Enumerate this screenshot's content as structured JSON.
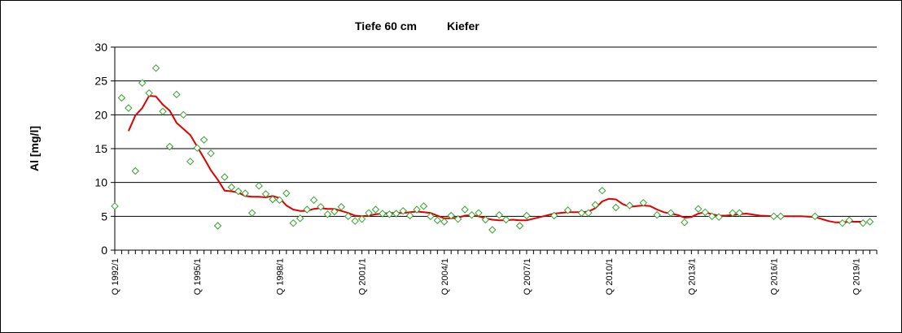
{
  "chart_data": {
    "type": "scatter",
    "title_left": "Tiefe  60 cm",
    "title_right": "Kiefer",
    "ylabel": "Al [mg/l]",
    "xlabel": "",
    "ylim": [
      0,
      30
    ],
    "yticks": [
      0,
      5,
      10,
      15,
      20,
      25,
      30
    ],
    "xlim": [
      1992.0,
      2019.75
    ],
    "xtick_labels": [
      {
        "x": 1992.0,
        "label": "Q 1992/1"
      },
      {
        "x": 1995.0,
        "label": "Q 1995/1"
      },
      {
        "x": 1998.0,
        "label": "Q 1998/1"
      },
      {
        "x": 2001.0,
        "label": "Q 2001/1"
      },
      {
        "x": 2004.0,
        "label": "Q 2004/1"
      },
      {
        "x": 2007.0,
        "label": "Q 2007/1"
      },
      {
        "x": 2010.0,
        "label": "Q 2010/1"
      },
      {
        "x": 2013.0,
        "label": "Q 2013/1"
      },
      {
        "x": 2016.0,
        "label": "Q 2016/1"
      },
      {
        "x": 2019.0,
        "label": "Q 2019/1"
      }
    ],
    "grid": "horizontal",
    "legend": "none",
    "series": [
      {
        "kind": "points",
        "marker": "diamond",
        "color": "#33a02c",
        "points": [
          [
            1992.0,
            6.5
          ],
          [
            1992.25,
            22.5
          ],
          [
            1992.5,
            21.0
          ],
          [
            1992.75,
            11.7
          ],
          [
            1993.0,
            24.7
          ],
          [
            1993.25,
            23.2
          ],
          [
            1993.5,
            26.9
          ],
          [
            1993.75,
            20.5
          ],
          [
            1994.0,
            15.3
          ],
          [
            1994.25,
            23.0
          ],
          [
            1994.5,
            20.0
          ],
          [
            1994.75,
            13.1
          ],
          [
            1995.0,
            15.1
          ],
          [
            1995.25,
            16.3
          ],
          [
            1995.5,
            14.3
          ],
          [
            1995.75,
            3.6
          ],
          [
            1996.0,
            10.8
          ],
          [
            1996.25,
            9.3
          ],
          [
            1996.5,
            8.7
          ],
          [
            1996.75,
            8.4
          ],
          [
            1997.0,
            5.5
          ],
          [
            1997.25,
            9.5
          ],
          [
            1997.5,
            8.3
          ],
          [
            1997.75,
            7.5
          ],
          [
            1998.0,
            7.4
          ],
          [
            1998.25,
            8.4
          ],
          [
            1998.5,
            4.0
          ],
          [
            1998.75,
            4.7
          ],
          [
            1999.0,
            6.0
          ],
          [
            1999.25,
            7.4
          ],
          [
            1999.5,
            6.4
          ],
          [
            1999.75,
            5.3
          ],
          [
            2000.0,
            5.7
          ],
          [
            2000.25,
            6.4
          ],
          [
            2000.5,
            5.0
          ],
          [
            2000.75,
            4.3
          ],
          [
            2001.0,
            4.6
          ],
          [
            2001.25,
            5.5
          ],
          [
            2001.5,
            6.0
          ],
          [
            2001.75,
            5.4
          ],
          [
            2002.0,
            5.3
          ],
          [
            2002.25,
            5.4
          ],
          [
            2002.5,
            5.8
          ],
          [
            2002.75,
            5.1
          ],
          [
            2003.0,
            6.0
          ],
          [
            2003.25,
            6.5
          ],
          [
            2003.5,
            5.0
          ],
          [
            2003.75,
            4.4
          ],
          [
            2004.0,
            4.2
          ],
          [
            2004.25,
            5.1
          ],
          [
            2004.5,
            4.6
          ],
          [
            2004.75,
            6.0
          ],
          [
            2005.0,
            5.2
          ],
          [
            2005.25,
            5.5
          ],
          [
            2005.5,
            4.5
          ],
          [
            2005.75,
            3.0
          ],
          [
            2006.0,
            5.2
          ],
          [
            2006.25,
            4.5
          ],
          [
            2006.75,
            3.6
          ],
          [
            2007.0,
            5.1
          ],
          [
            2008.0,
            5.1
          ],
          [
            2008.5,
            5.9
          ],
          [
            2009.0,
            5.5
          ],
          [
            2009.25,
            5.5
          ],
          [
            2009.5,
            6.7
          ],
          [
            2009.75,
            8.8
          ],
          [
            2010.25,
            6.3
          ],
          [
            2010.75,
            6.6
          ],
          [
            2011.25,
            7.0
          ],
          [
            2011.75,
            5.2
          ],
          [
            2012.25,
            5.5
          ],
          [
            2012.75,
            4.1
          ],
          [
            2013.25,
            6.1
          ],
          [
            2013.5,
            5.6
          ],
          [
            2013.75,
            5.0
          ],
          [
            2014.0,
            4.9
          ],
          [
            2014.5,
            5.5
          ],
          [
            2014.75,
            5.5
          ],
          [
            2016.0,
            5.0
          ],
          [
            2016.25,
            5.0
          ],
          [
            2017.5,
            5.0
          ],
          [
            2018.5,
            4.0
          ],
          [
            2018.75,
            4.4
          ],
          [
            2019.25,
            4.0
          ],
          [
            2019.5,
            4.2
          ]
        ]
      },
      {
        "kind": "line",
        "color": "#e00000",
        "points": [
          [
            1992.5,
            17.6
          ],
          [
            1992.75,
            19.9
          ],
          [
            1993.0,
            21.0
          ],
          [
            1993.25,
            22.8
          ],
          [
            1993.5,
            22.7
          ],
          [
            1993.75,
            21.5
          ],
          [
            1994.0,
            20.6
          ],
          [
            1994.25,
            18.8
          ],
          [
            1994.5,
            17.9
          ],
          [
            1994.75,
            17.0
          ],
          [
            1995.0,
            15.3
          ],
          [
            1995.25,
            13.6
          ],
          [
            1995.5,
            11.8
          ],
          [
            1995.75,
            10.4
          ],
          [
            1996.0,
            8.8
          ],
          [
            1996.25,
            8.7
          ],
          [
            1996.5,
            8.5
          ],
          [
            1996.75,
            8.0
          ],
          [
            1997.0,
            7.9
          ],
          [
            1997.25,
            7.9
          ],
          [
            1997.5,
            7.8
          ],
          [
            1997.75,
            8.0
          ],
          [
            1998.0,
            7.7
          ],
          [
            1998.25,
            6.6
          ],
          [
            1998.5,
            6.0
          ],
          [
            1998.75,
            5.8
          ],
          [
            1999.0,
            5.8
          ],
          [
            1999.25,
            6.1
          ],
          [
            1999.5,
            6.2
          ],
          [
            1999.75,
            6.1
          ],
          [
            2000.0,
            6.1
          ],
          [
            2000.25,
            5.8
          ],
          [
            2000.5,
            5.5
          ],
          [
            2000.75,
            5.1
          ],
          [
            2001.0,
            5.0
          ],
          [
            2001.25,
            5.1
          ],
          [
            2001.5,
            5.3
          ],
          [
            2001.75,
            5.4
          ],
          [
            2002.0,
            5.5
          ],
          [
            2002.25,
            5.5
          ],
          [
            2002.5,
            5.5
          ],
          [
            2002.75,
            5.6
          ],
          [
            2003.0,
            5.7
          ],
          [
            2003.25,
            5.6
          ],
          [
            2003.5,
            5.5
          ],
          [
            2003.75,
            5.1
          ],
          [
            2004.0,
            4.7
          ],
          [
            2004.25,
            4.7
          ],
          [
            2004.5,
            4.8
          ],
          [
            2004.75,
            5.1
          ],
          [
            2005.0,
            5.2
          ],
          [
            2005.25,
            5.0
          ],
          [
            2005.5,
            4.7
          ],
          [
            2005.75,
            4.5
          ],
          [
            2006.0,
            4.4
          ],
          [
            2006.25,
            4.4
          ],
          [
            2006.5,
            4.5
          ],
          [
            2006.75,
            4.4
          ],
          [
            2007.0,
            4.4
          ],
          [
            2007.5,
            4.9
          ],
          [
            2008.0,
            5.4
          ],
          [
            2008.5,
            5.6
          ],
          [
            2009.0,
            5.6
          ],
          [
            2009.25,
            5.7
          ],
          [
            2009.5,
            6.2
          ],
          [
            2009.75,
            7.2
          ],
          [
            2010.0,
            7.6
          ],
          [
            2010.25,
            7.5
          ],
          [
            2010.5,
            6.8
          ],
          [
            2010.75,
            6.4
          ],
          [
            2011.0,
            6.5
          ],
          [
            2011.25,
            6.6
          ],
          [
            2011.5,
            6.5
          ],
          [
            2011.75,
            6.0
          ],
          [
            2012.0,
            5.6
          ],
          [
            2012.25,
            5.4
          ],
          [
            2012.5,
            5.2
          ],
          [
            2012.75,
            4.8
          ],
          [
            2013.0,
            4.9
          ],
          [
            2013.25,
            5.4
          ],
          [
            2013.5,
            5.6
          ],
          [
            2013.75,
            5.3
          ],
          [
            2014.0,
            5.1
          ],
          [
            2014.25,
            5.1
          ],
          [
            2014.5,
            5.2
          ],
          [
            2014.75,
            5.3
          ],
          [
            2015.0,
            5.4
          ],
          [
            2015.5,
            5.1
          ],
          [
            2016.0,
            5.0
          ],
          [
            2016.5,
            5.0
          ],
          [
            2017.0,
            5.0
          ],
          [
            2017.5,
            4.9
          ],
          [
            2018.0,
            4.3
          ],
          [
            2018.25,
            4.1
          ],
          [
            2018.5,
            4.1
          ],
          [
            2018.75,
            4.2
          ],
          [
            2019.0,
            4.2
          ],
          [
            2019.25,
            4.2
          ]
        ]
      }
    ]
  }
}
